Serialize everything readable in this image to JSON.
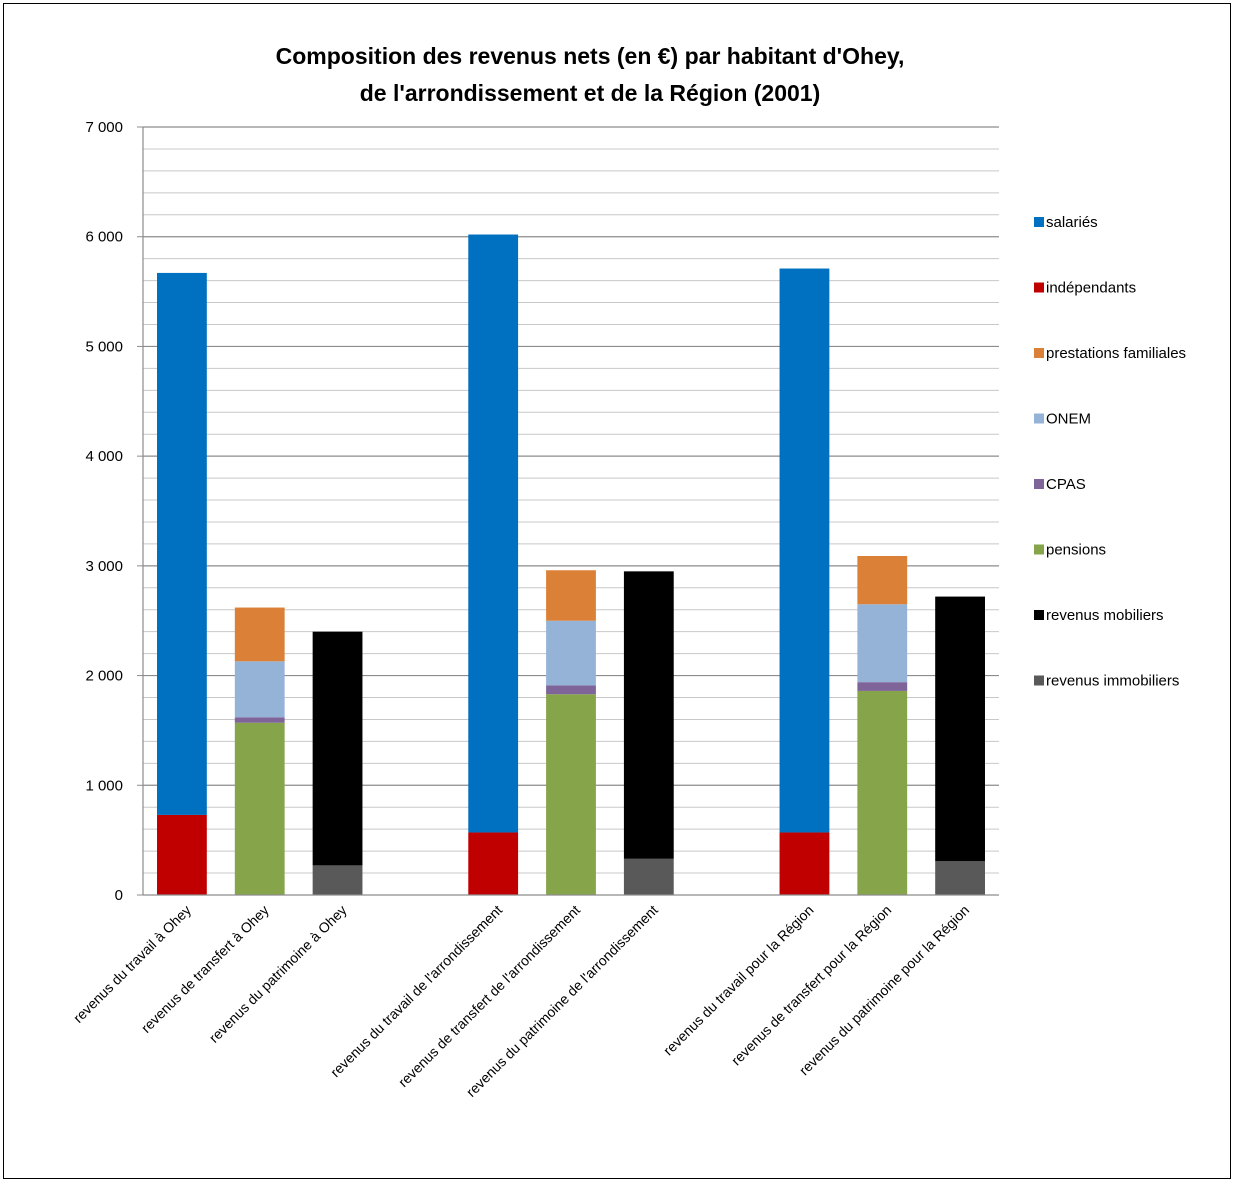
{
  "chart_data": {
    "type": "bar",
    "stacked": true,
    "title_lines": [
      "Composition des revenus nets (en €) par habitant d'Ohey,",
      "de l'arrondissement et de la Région (2001)"
    ],
    "xlabel": "",
    "ylabel": "",
    "ylim": [
      0,
      7000
    ],
    "yticks": [
      0,
      1000,
      2000,
      3000,
      4000,
      5000,
      6000,
      7000
    ],
    "ytick_labels": [
      "0",
      "1 000",
      "2 000",
      "3 000",
      "4 000",
      "5 000",
      "6 000",
      "7 000"
    ],
    "grid": true,
    "legend_position": "right",
    "categories": [
      "revenus du travail à Ohey",
      "revenus de transfert à Ohey",
      "revenus du patrimoine à Ohey",
      "",
      "revenus du travail de l'arrondissement",
      "revenus de transfert de l'arrondissement",
      "revenus du patrimoine de l'arrondissement",
      "",
      "revenus du travail  pour la Région",
      "revenus de transfert pour la Région",
      "revenus du patrimoine pour la Région"
    ],
    "series": [
      {
        "name": "revenus immobiliers",
        "color": "#595959",
        "values": [
          0,
          0,
          270,
          0,
          0,
          0,
          330,
          0,
          0,
          0,
          310
        ]
      },
      {
        "name": "revenus mobiliers",
        "color": "#000000",
        "values": [
          0,
          0,
          2130,
          0,
          0,
          0,
          2620,
          0,
          0,
          0,
          2410
        ]
      },
      {
        "name": "pensions",
        "color": "#86A44A",
        "values": [
          0,
          1570,
          0,
          0,
          0,
          1830,
          0,
          0,
          0,
          1860,
          0
        ]
      },
      {
        "name": "CPAS",
        "color": "#7E6499",
        "values": [
          0,
          50,
          0,
          0,
          0,
          80,
          0,
          0,
          0,
          80,
          0
        ]
      },
      {
        "name": "ONEM",
        "color": "#95B3D7",
        "values": [
          0,
          510,
          0,
          0,
          0,
          590,
          0,
          0,
          0,
          710,
          0
        ]
      },
      {
        "name": "prestations familiales",
        "color": "#DA8137",
        "values": [
          0,
          490,
          0,
          0,
          0,
          460,
          0,
          0,
          0,
          440,
          0
        ]
      },
      {
        "name": "indépendants",
        "color": "#C00000",
        "values": [
          730,
          0,
          0,
          0,
          570,
          0,
          0,
          0,
          570,
          0,
          0
        ]
      },
      {
        "name": "salariés",
        "color": "#0070C0",
        "values": [
          4940,
          0,
          0,
          0,
          5450,
          0,
          0,
          0,
          5140,
          0,
          0
        ]
      }
    ],
    "legend_order": [
      "salariés",
      "indépendants",
      "prestations familiales",
      "ONEM",
      "CPAS",
      "pensions",
      "revenus mobiliers",
      "revenus immobiliers"
    ]
  }
}
